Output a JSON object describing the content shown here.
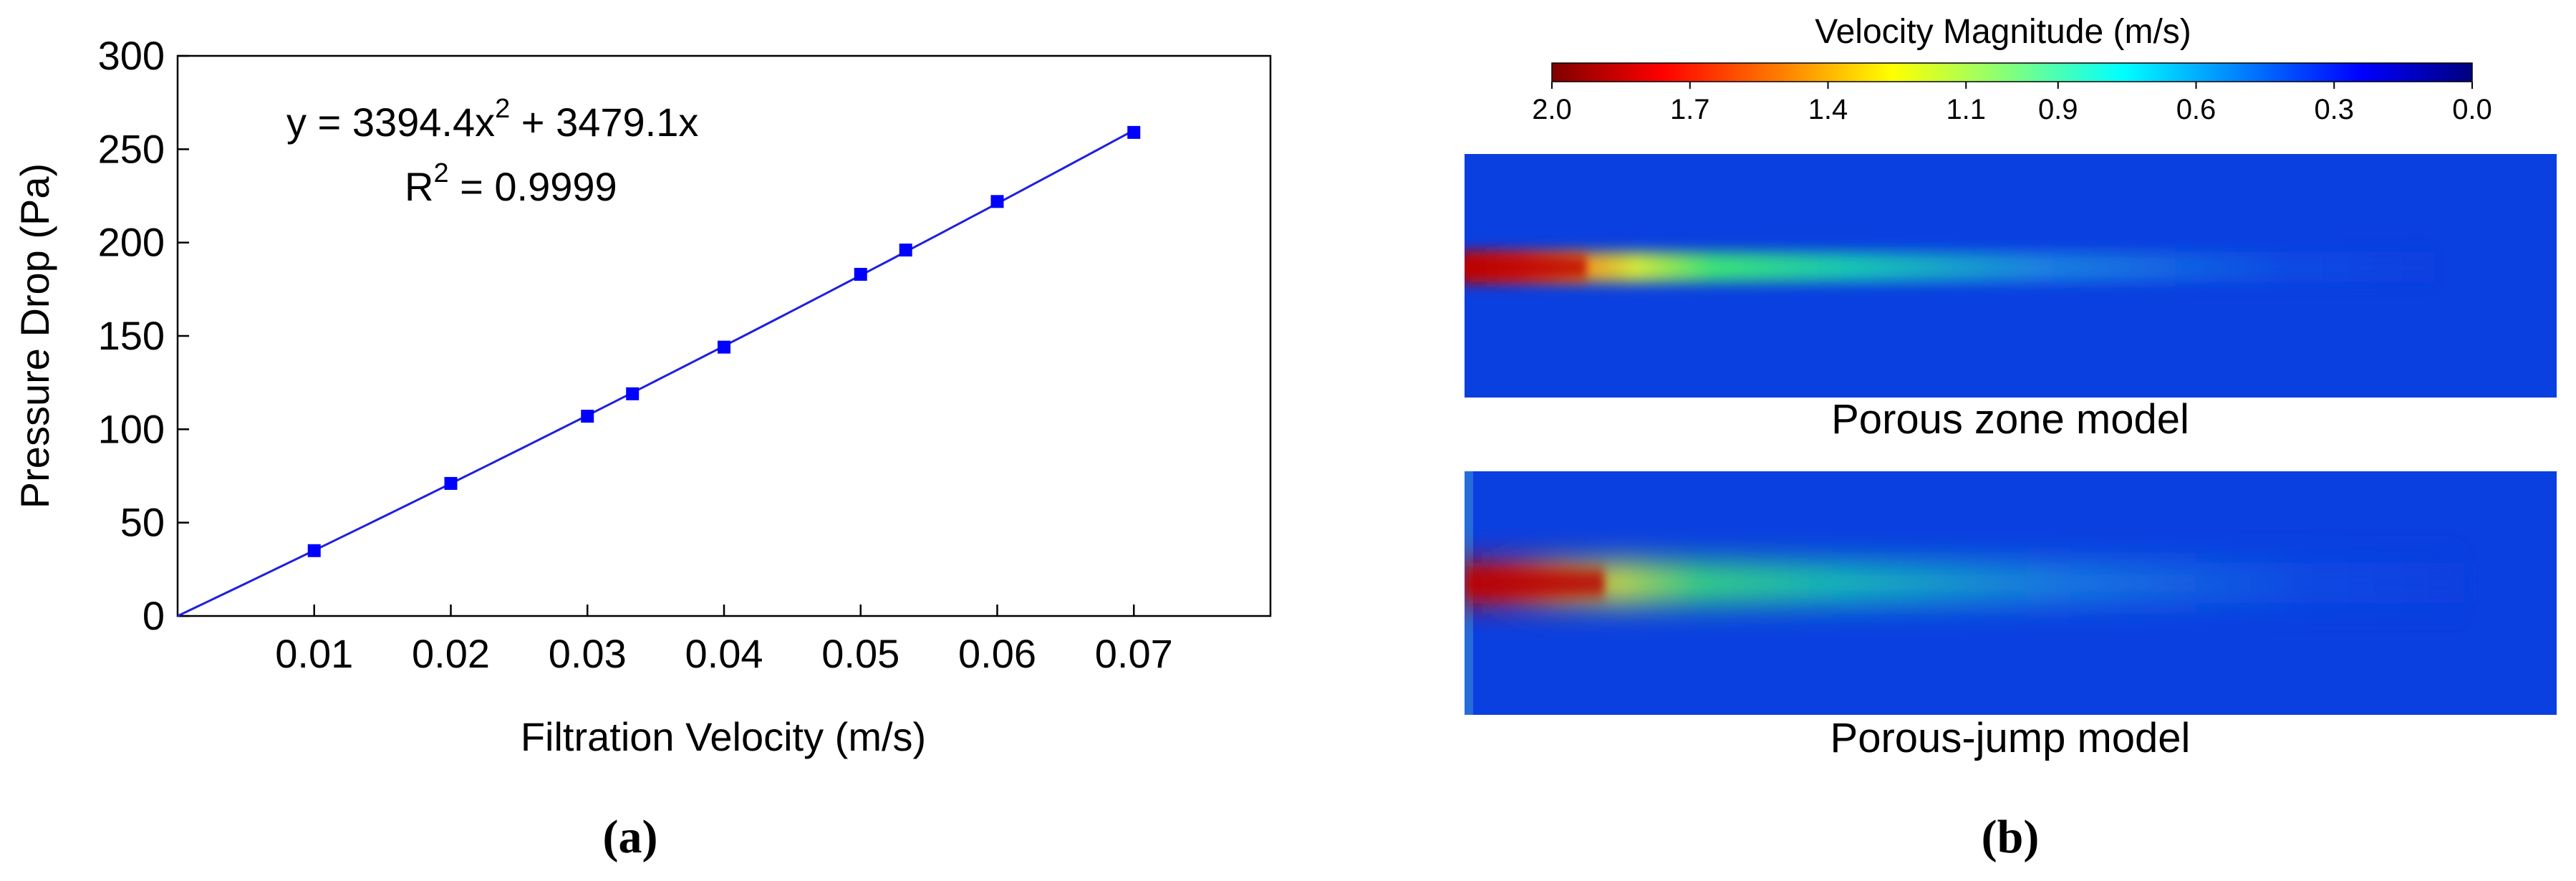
{
  "chart_data": [
    {
      "type": "scatter",
      "title": "",
      "xlabel": "Filtration Velocity (m/s)",
      "ylabel": "Pressure Drop (Pa)",
      "xlim": [
        0,
        0.08
      ],
      "ylim": [
        0,
        300
      ],
      "xticks": [
        "0.01",
        "0.02",
        "0.03",
        "0.04",
        "0.05",
        "0.06",
        "0.07"
      ],
      "yticks": [
        "0",
        "50",
        "100",
        "150",
        "200",
        "250",
        "300"
      ],
      "series": [
        {
          "name": "Pressure drop",
          "color": "#0000ff",
          "x": [
            0.01,
            0.02,
            0.03,
            0.0333,
            0.04,
            0.05,
            0.0533,
            0.06,
            0.07
          ],
          "y": [
            35,
            71,
            107,
            119,
            144,
            183,
            196,
            222,
            259
          ]
        }
      ],
      "fit": {
        "a": 3394.4,
        "b": 3479.1,
        "x_range": [
          0,
          0.07
        ],
        "equation_prefix": "y = 3394.4x",
        "equation_sup": "2",
        "equation_suffix": " + 3479.1x",
        "r2_prefix": "R",
        "r2_sup": "2",
        "r2_suffix": " = 0.9999"
      },
      "panel_label": "(a)"
    },
    {
      "type": "heatmap",
      "title": "Velocity Magnitude (m/s)",
      "colorbar_ticks": [
        "2.0",
        "1.7",
        "1.4",
        "1.1",
        "0.9",
        "0.6",
        "0.3",
        "0.0"
      ],
      "colorbar_range": [
        2.0,
        0.0
      ],
      "colors": {
        "background": "#0a3fe0",
        "jet": [
          "#7f0000",
          "#ff0000",
          "#ff7f00",
          "#ffff00",
          "#7fff7f",
          "#00ffff",
          "#007fff",
          "#0000ff",
          "#00007f"
        ]
      },
      "panels": [
        {
          "caption": "Porous zone model"
        },
        {
          "caption": "Porous-jump model"
        }
      ],
      "panel_label": "(b)"
    }
  ]
}
